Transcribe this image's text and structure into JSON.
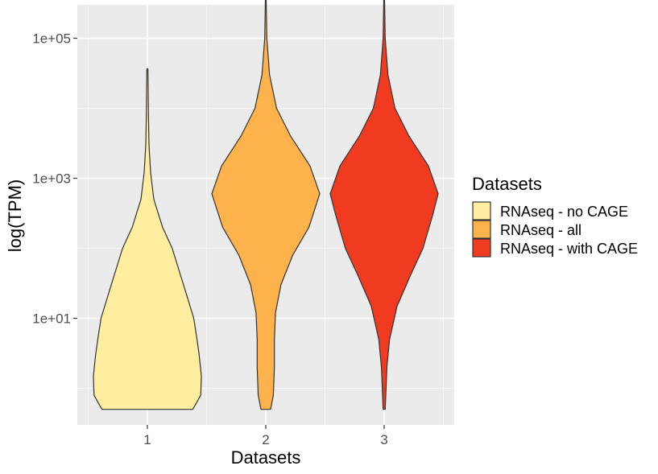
{
  "chart_data": {
    "type": "violin",
    "xlabel": "Datasets",
    "ylabel": "log(TPM)",
    "y_scale": "log10",
    "ylim": [
      0.3,
      300000
    ],
    "y_ticks": [
      {
        "value": 100000,
        "label": "1e+05"
      },
      {
        "value": 1000,
        "label": "1e+03"
      },
      {
        "value": 10,
        "label": "1e+01"
      }
    ],
    "categories": [
      "1",
      "2",
      "3"
    ],
    "grid": true,
    "legend": {
      "title": "Datasets",
      "placement": "right",
      "entries": [
        {
          "label": "RNAseq - no CAGE",
          "color": "#FFEDA0"
        },
        {
          "label": "RNAseq - all",
          "color": "#FEB24C"
        },
        {
          "label": "RNAseq - with CAGE",
          "color": "#F03B20"
        }
      ]
    },
    "series": [
      {
        "category": "1",
        "color": "#FFEDA0",
        "y_min": 0.5,
        "y_max": 36000,
        "density_profile": [
          [
            0.5,
            0.84
          ],
          [
            0.6,
            0.9
          ],
          [
            0.8,
            0.99
          ],
          [
            1.5,
            1.0
          ],
          [
            3,
            0.96
          ],
          [
            5,
            0.92
          ],
          [
            10,
            0.86
          ],
          [
            20,
            0.74
          ],
          [
            40,
            0.62
          ],
          [
            100,
            0.46
          ],
          [
            200,
            0.28
          ],
          [
            500,
            0.12
          ],
          [
            1200,
            0.06
          ],
          [
            3000,
            0.03
          ],
          [
            8000,
            0.02
          ],
          [
            36000,
            0.01
          ]
        ]
      },
      {
        "category": "2",
        "color": "#FEB24C",
        "y_min": 0.5,
        "y_max": 400000,
        "density_profile": [
          [
            0.5,
            0.09
          ],
          [
            0.8,
            0.14
          ],
          [
            2,
            0.16
          ],
          [
            5,
            0.16
          ],
          [
            12,
            0.18
          ],
          [
            30,
            0.28
          ],
          [
            80,
            0.5
          ],
          [
            200,
            0.8
          ],
          [
            600,
            1.0
          ],
          [
            1500,
            0.82
          ],
          [
            4000,
            0.46
          ],
          [
            10000,
            0.2
          ],
          [
            30000,
            0.07
          ],
          [
            100000,
            0.02
          ],
          [
            400000,
            0.006
          ]
        ]
      },
      {
        "category": "3",
        "color": "#F03B20",
        "y_min": 0.5,
        "y_max": 400000,
        "density_profile": [
          [
            0.5,
            0.02
          ],
          [
            2,
            0.05
          ],
          [
            5,
            0.1
          ],
          [
            15,
            0.24
          ],
          [
            40,
            0.48
          ],
          [
            100,
            0.72
          ],
          [
            300,
            0.9
          ],
          [
            600,
            1.0
          ],
          [
            1500,
            0.82
          ],
          [
            4000,
            0.46
          ],
          [
            10000,
            0.2
          ],
          [
            30000,
            0.07
          ],
          [
            100000,
            0.02
          ],
          [
            400000,
            0.006
          ]
        ]
      }
    ]
  }
}
